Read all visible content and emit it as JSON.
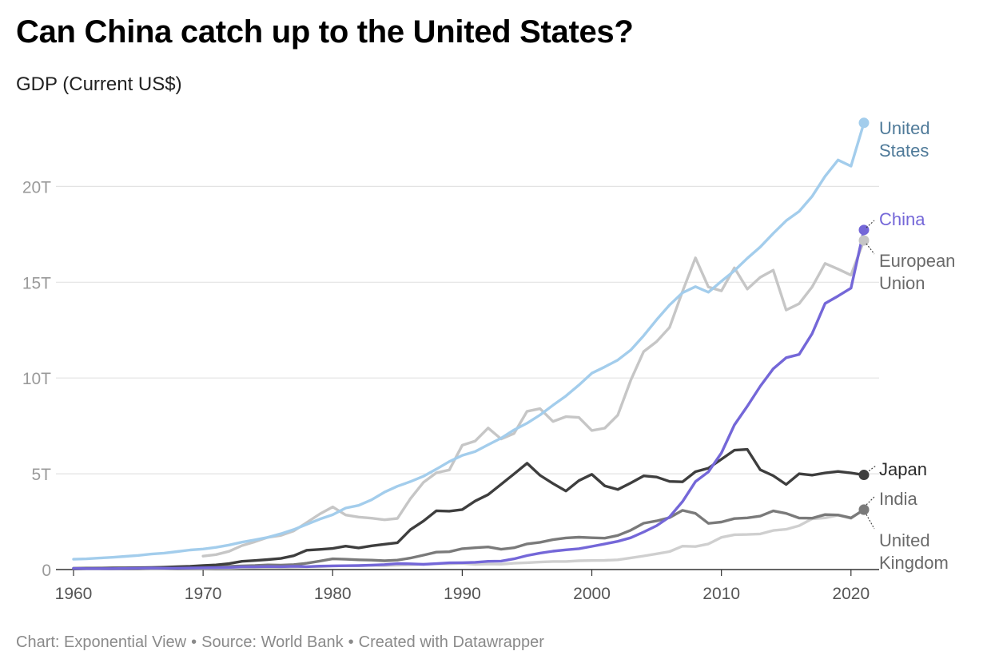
{
  "title": "Can China catch up to the United States?",
  "subtitle": "GDP (Current US$)",
  "footer": {
    "chart_by": "Chart: Exponential View",
    "source": "Source: World Bank",
    "created": "Created with Datawrapper"
  },
  "chart_data": {
    "type": "line",
    "title": "Can China catch up to the United States?",
    "ylabel": "GDP (Current US$)",
    "xlim": [
      1960,
      2021
    ],
    "ylim": [
      0,
      23
    ],
    "grid": true,
    "legend": "direct labels at line ends (right)",
    "x_ticks": [
      1960,
      1970,
      1980,
      1990,
      2000,
      2010,
      2020
    ],
    "y_ticks": [
      0,
      5,
      10,
      15,
      20
    ],
    "y_tick_labels": [
      "0",
      "5T",
      "10T",
      "15T",
      "20T"
    ],
    "series": [
      {
        "name": "United States",
        "label_lines": [
          "United",
          "States"
        ],
        "color": "#a3cdec",
        "label_color": "#4f7a99",
        "x_start": 1960,
        "values": [
          0.54,
          0.56,
          0.6,
          0.64,
          0.69,
          0.74,
          0.81,
          0.86,
          0.94,
          1.02,
          1.07,
          1.16,
          1.28,
          1.43,
          1.55,
          1.68,
          1.87,
          2.09,
          2.36,
          2.63,
          2.86,
          3.21,
          3.35,
          3.64,
          4.04,
          4.35,
          4.59,
          4.87,
          5.24,
          5.64,
          5.96,
          6.16,
          6.52,
          6.86,
          7.29,
          7.64,
          8.07,
          8.58,
          9.06,
          9.63,
          10.25,
          10.58,
          10.94,
          11.46,
          12.21,
          13.04,
          13.81,
          14.45,
          14.77,
          14.48,
          15.05,
          15.6,
          16.25,
          16.84,
          17.55,
          18.21,
          18.7,
          19.48,
          20.53,
          21.38,
          21.06,
          23.32
        ]
      },
      {
        "name": "China",
        "label_lines": [
          "China"
        ],
        "color": "#7467d8",
        "label_color": "#7467d8",
        "x_start": 1960,
        "values": [
          0.06,
          0.05,
          0.05,
          0.05,
          0.06,
          0.07,
          0.08,
          0.07,
          0.07,
          0.08,
          0.09,
          0.1,
          0.11,
          0.14,
          0.14,
          0.16,
          0.15,
          0.17,
          0.15,
          0.18,
          0.19,
          0.2,
          0.21,
          0.23,
          0.26,
          0.31,
          0.3,
          0.27,
          0.31,
          0.35,
          0.36,
          0.38,
          0.43,
          0.44,
          0.56,
          0.73,
          0.86,
          0.96,
          1.03,
          1.09,
          1.21,
          1.34,
          1.47,
          1.66,
          1.96,
          2.29,
          2.75,
          3.55,
          4.59,
          5.1,
          6.09,
          7.55,
          8.53,
          9.57,
          10.48,
          11.06,
          11.23,
          12.31,
          13.89,
          14.28,
          14.69,
          17.73
        ]
      },
      {
        "name": "European Union",
        "label_lines": [
          "European",
          "Union"
        ],
        "color": "#c6c6c6",
        "label_color": "#6a6a6a",
        "x_start": 1970,
        "values": [
          0.7,
          0.78,
          0.95,
          1.25,
          1.45,
          1.68,
          1.78,
          2.02,
          2.45,
          2.9,
          3.27,
          2.85,
          2.74,
          2.68,
          2.6,
          2.67,
          3.7,
          4.55,
          5.05,
          5.2,
          6.49,
          6.71,
          7.39,
          6.82,
          7.1,
          8.26,
          8.4,
          7.73,
          7.98,
          7.94,
          7.26,
          7.38,
          8.06,
          9.88,
          11.38,
          11.9,
          12.64,
          14.52,
          16.27,
          14.75,
          14.55,
          15.75,
          14.64,
          15.26,
          15.63,
          13.55,
          13.88,
          14.75,
          15.98,
          15.69,
          15.37,
          17.18
        ]
      },
      {
        "name": "Japan",
        "label_lines": [
          "Japan"
        ],
        "color": "#3e3e3e",
        "label_color": "#2a2a2a",
        "x_start": 1960,
        "values": [
          0.04,
          0.05,
          0.06,
          0.07,
          0.08,
          0.09,
          0.1,
          0.12,
          0.15,
          0.17,
          0.21,
          0.24,
          0.31,
          0.43,
          0.47,
          0.52,
          0.58,
          0.72,
          1.01,
          1.05,
          1.1,
          1.22,
          1.13,
          1.24,
          1.32,
          1.4,
          2.08,
          2.53,
          3.07,
          3.05,
          3.13,
          3.58,
          3.91,
          4.45,
          4.99,
          5.55,
          4.92,
          4.49,
          4.1,
          4.64,
          4.97,
          4.37,
          4.18,
          4.52,
          4.89,
          4.83,
          4.6,
          4.58,
          5.11,
          5.29,
          5.76,
          6.23,
          6.27,
          5.21,
          4.9,
          4.44,
          5.0,
          4.93,
          5.04,
          5.12,
          5.04,
          4.94
        ]
      },
      {
        "name": "India",
        "label_lines": [
          "India"
        ],
        "color": "#cfcfcf",
        "label_color": "#6a6a6a",
        "x_start": 1960,
        "values": [
          0.04,
          0.04,
          0.04,
          0.05,
          0.06,
          0.06,
          0.05,
          0.05,
          0.06,
          0.06,
          0.06,
          0.07,
          0.07,
          0.09,
          0.1,
          0.1,
          0.1,
          0.12,
          0.14,
          0.15,
          0.19,
          0.2,
          0.2,
          0.22,
          0.21,
          0.23,
          0.25,
          0.28,
          0.3,
          0.3,
          0.32,
          0.27,
          0.29,
          0.28,
          0.33,
          0.36,
          0.39,
          0.42,
          0.42,
          0.46,
          0.47,
          0.48,
          0.51,
          0.61,
          0.71,
          0.82,
          0.94,
          1.22,
          1.2,
          1.34,
          1.68,
          1.82,
          1.83,
          1.86,
          2.04,
          2.1,
          2.29,
          2.65,
          2.7,
          2.84,
          2.67,
          3.15
        ]
      },
      {
        "name": "United Kingdom",
        "label_lines": [
          "United",
          "Kingdom"
        ],
        "color": "#7a7a7a",
        "label_color": "#6a6a6a",
        "x_start": 1960,
        "values": [
          0.07,
          0.08,
          0.08,
          0.09,
          0.09,
          0.1,
          0.11,
          0.11,
          0.11,
          0.12,
          0.13,
          0.15,
          0.17,
          0.19,
          0.21,
          0.24,
          0.23,
          0.26,
          0.33,
          0.44,
          0.56,
          0.54,
          0.51,
          0.49,
          0.46,
          0.49,
          0.6,
          0.75,
          0.91,
          0.93,
          1.09,
          1.14,
          1.18,
          1.06,
          1.14,
          1.34,
          1.42,
          1.56,
          1.65,
          1.69,
          1.66,
          1.64,
          1.78,
          2.05,
          2.42,
          2.54,
          2.71,
          3.09,
          2.93,
          2.41,
          2.48,
          2.66,
          2.7,
          2.79,
          3.06,
          2.93,
          2.69,
          2.68,
          2.87,
          2.85,
          2.7,
          3.12
        ]
      }
    ]
  }
}
